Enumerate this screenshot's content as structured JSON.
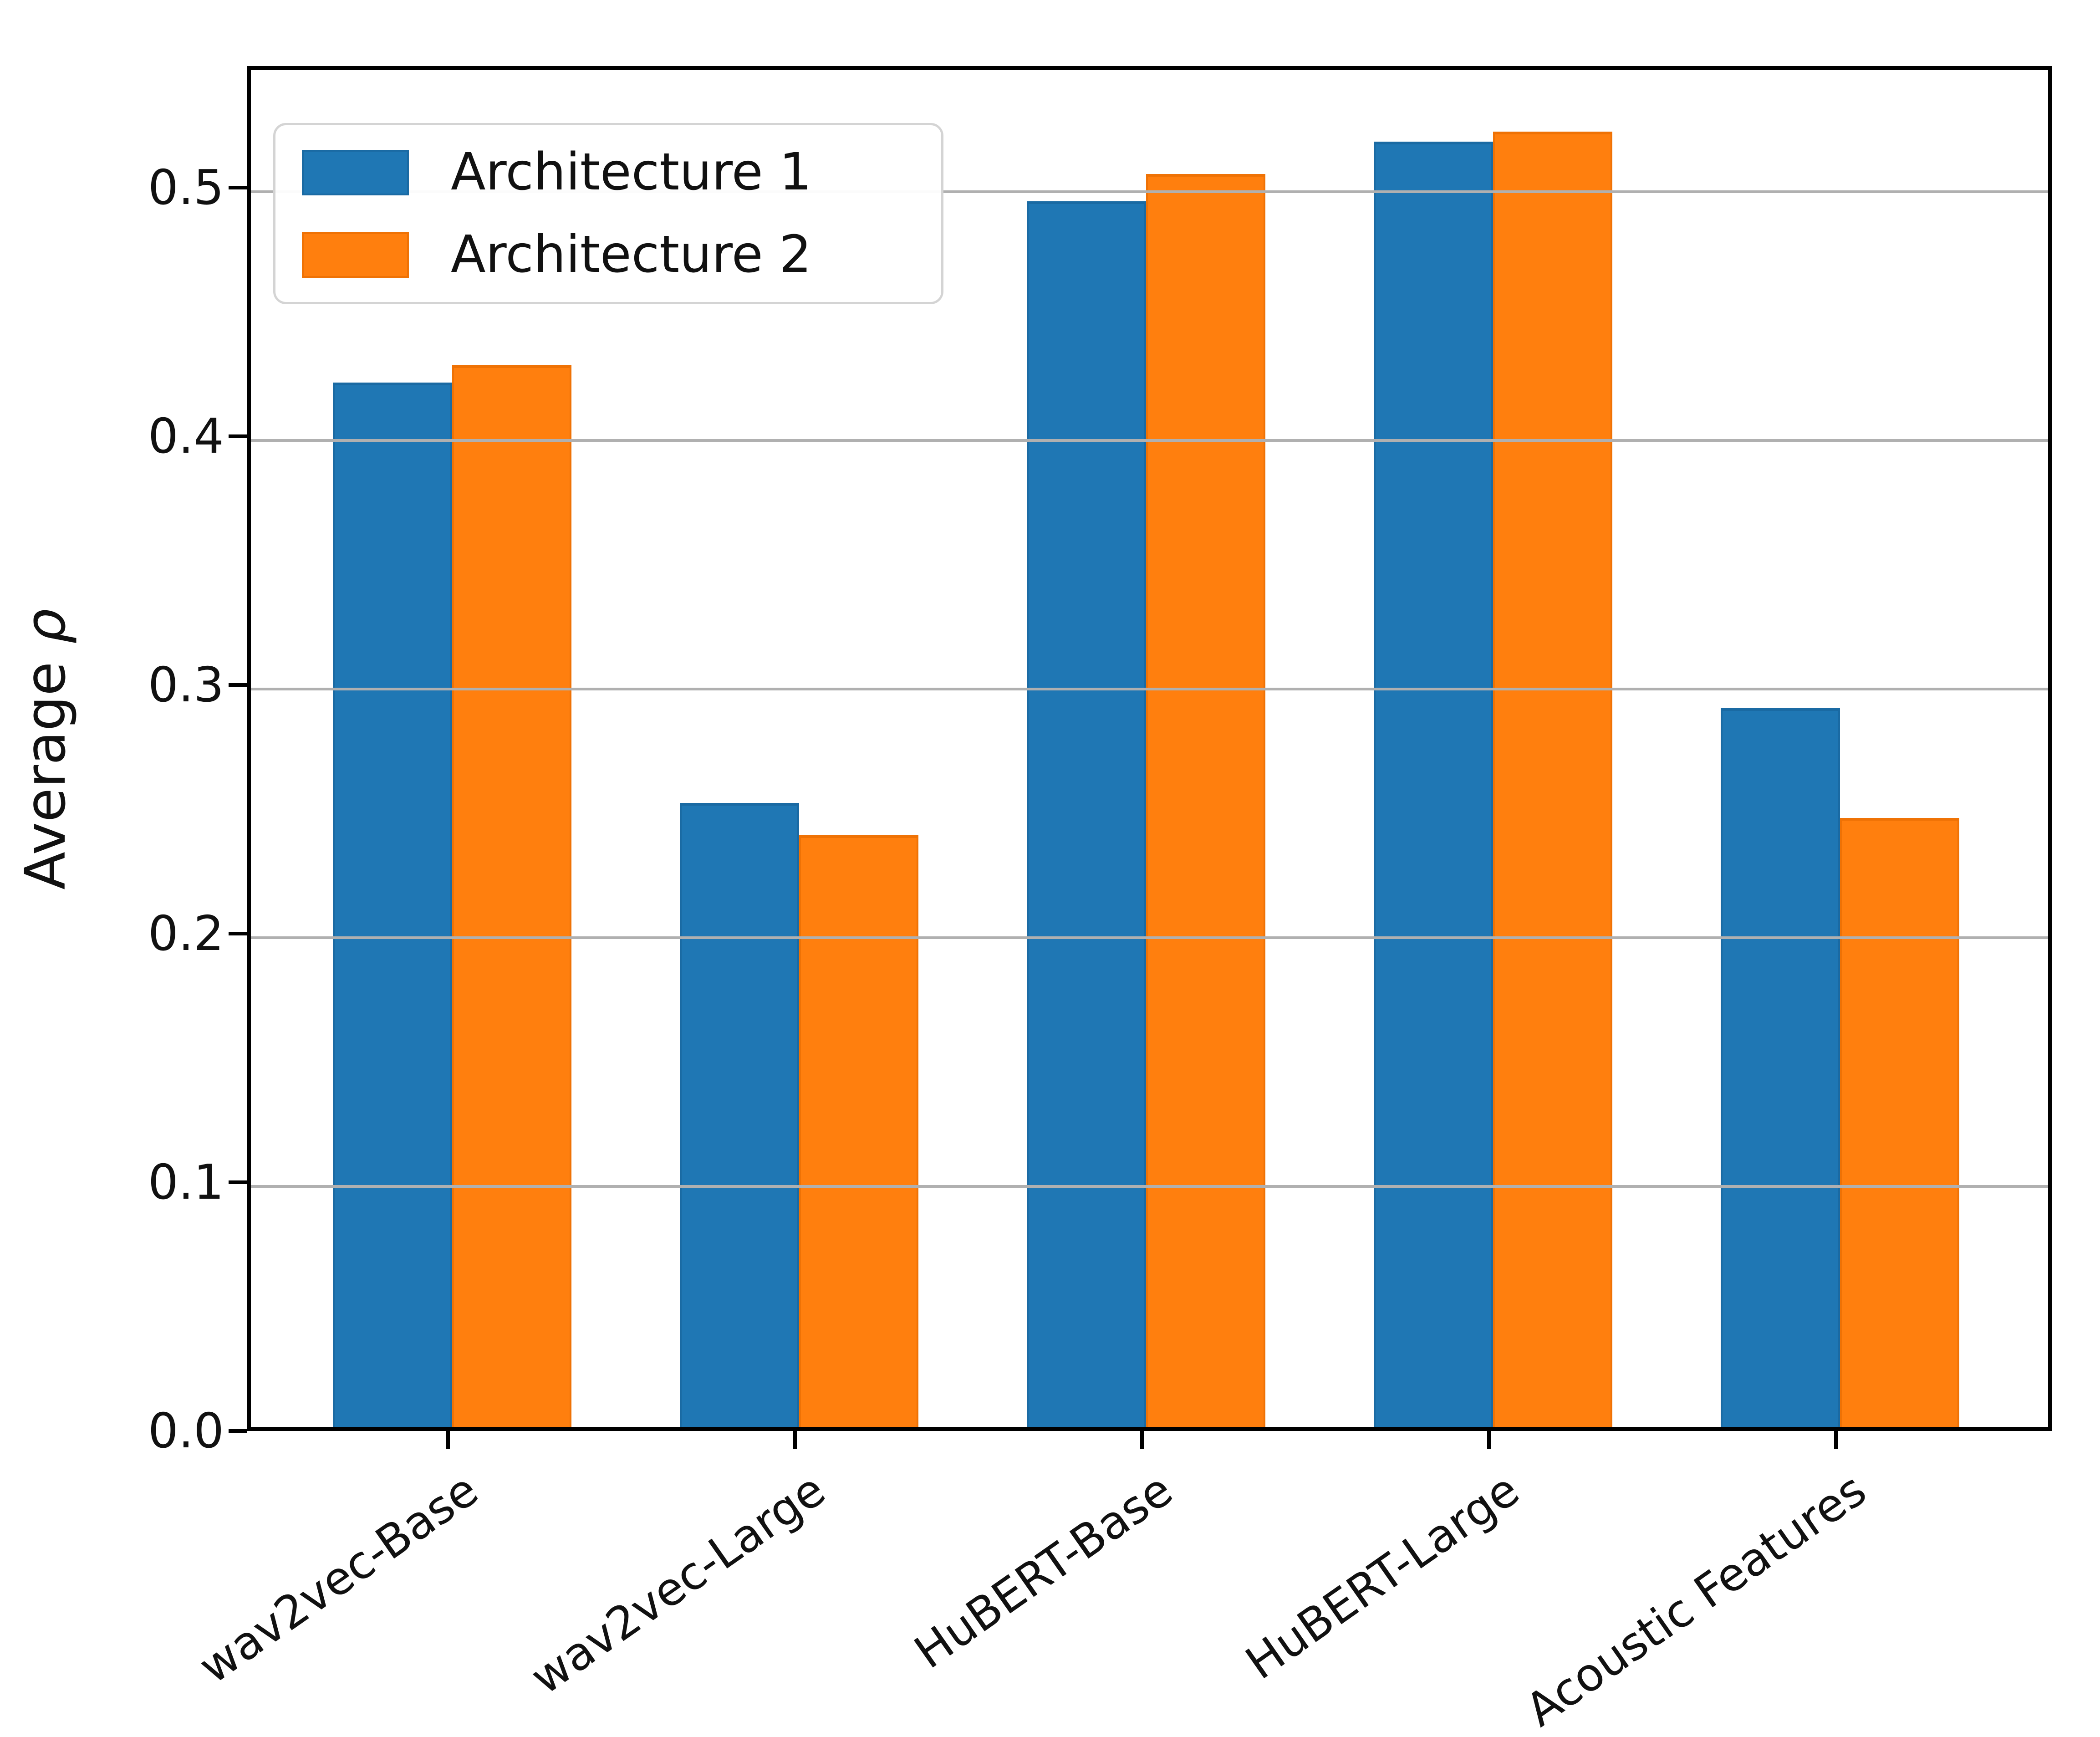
{
  "chart_data": {
    "type": "bar",
    "title": "",
    "categories": [
      "wav2vec-Base",
      "wav2vec-Large",
      "HuBERT-Base",
      "HuBERT-Large",
      "Acoustic Features"
    ],
    "series": [
      {
        "name": "Architecture 1",
        "color": "#1f77b4",
        "edge_color": "#1a6aa3",
        "values": [
          0.42,
          0.251,
          0.493,
          0.517,
          0.289
        ]
      },
      {
        "name": "Architecture 2",
        "color": "#ff7f0e",
        "edge_color": "#ef7205",
        "values": [
          0.427,
          0.238,
          0.504,
          0.521,
          0.245
        ]
      }
    ],
    "xlabel": "",
    "ylabel": "Average ρ",
    "ylabel_prefix": "Average ",
    "ylabel_symbol": "ρ",
    "ylim": [
      0,
      0.55
    ],
    "yticks": [
      "0.0",
      "0.1",
      "0.2",
      "0.3",
      "0.4",
      "0.5"
    ],
    "grid": "horizontal",
    "gridline_color": "#b0b0b0",
    "legend_position": "upper left",
    "legend_labels": [
      "Architecture 1",
      "Architecture 2"
    ]
  }
}
